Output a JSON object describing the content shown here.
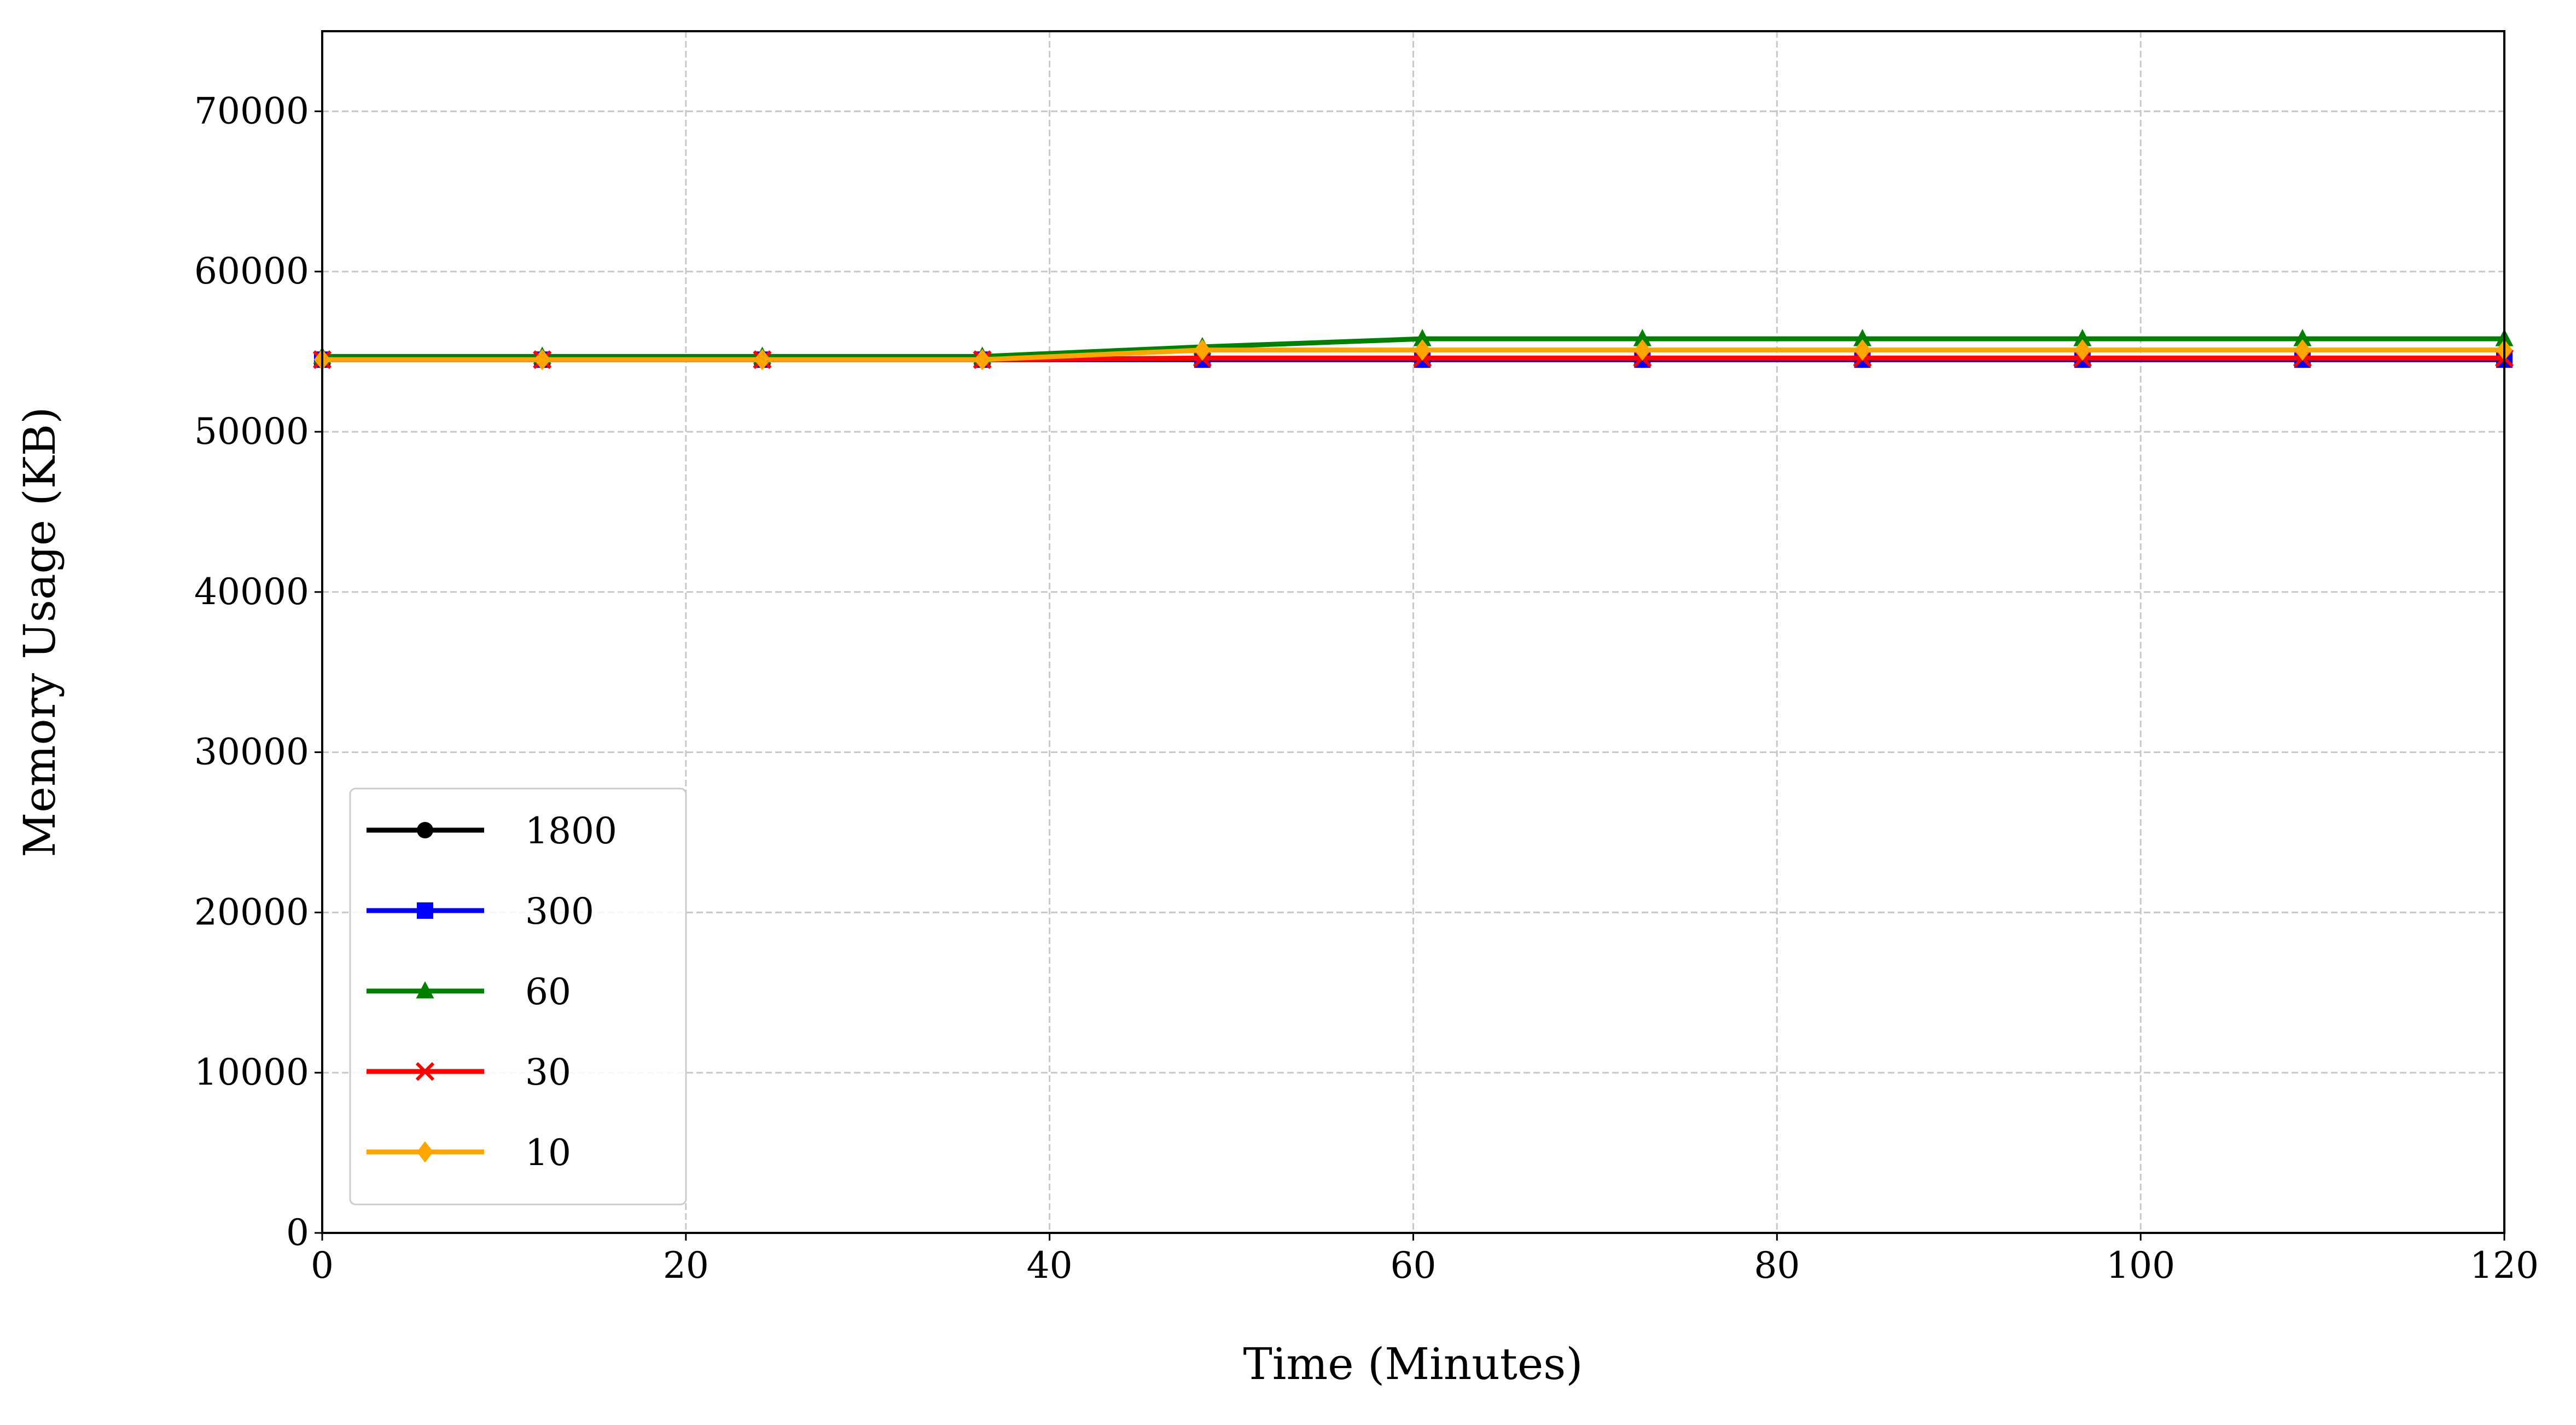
{
  "chart_data": {
    "type": "line",
    "x_label": "Time (Minutes)",
    "y_label": "Memory Usage (KB)",
    "x": [
      0,
      12.1,
      24.2,
      36.3,
      48.4,
      60.5,
      72.6,
      84.7,
      96.8,
      108.9,
      120
    ],
    "series": [
      {
        "name": "1800",
        "color": "#000000",
        "marker": "circle",
        "values": [
          54500,
          54500,
          54500,
          54500,
          54500,
          54500,
          54500,
          54500,
          54500,
          54500,
          54500
        ]
      },
      {
        "name": "300",
        "color": "#0000ff",
        "marker": "square",
        "values": [
          54500,
          54500,
          54500,
          54500,
          54500,
          54500,
          54500,
          54500,
          54500,
          54500,
          54500
        ]
      },
      {
        "name": "60",
        "color": "#008000",
        "marker": "triangle",
        "values": [
          54700,
          54700,
          54700,
          54700,
          55300,
          55800,
          55800,
          55800,
          55800,
          55800,
          55800
        ]
      },
      {
        "name": "30",
        "color": "#ff0000",
        "marker": "x",
        "values": [
          54500,
          54500,
          54500,
          54500,
          54600,
          54600,
          54600,
          54600,
          54600,
          54600,
          54600
        ]
      },
      {
        "name": "10",
        "color": "#ffa500",
        "marker": "diamond",
        "values": [
          54500,
          54500,
          54500,
          54500,
          55100,
          55100,
          55100,
          55100,
          55100,
          55100,
          55100
        ]
      }
    ],
    "xlim": [
      0,
      120
    ],
    "xticks": [
      0,
      20,
      40,
      60,
      80,
      100,
      120
    ],
    "ylim": [
      0,
      75000
    ],
    "yticks": [
      0,
      10000,
      20000,
      30000,
      40000,
      50000,
      60000,
      70000
    ],
    "grid": true,
    "legend": "lower left"
  }
}
